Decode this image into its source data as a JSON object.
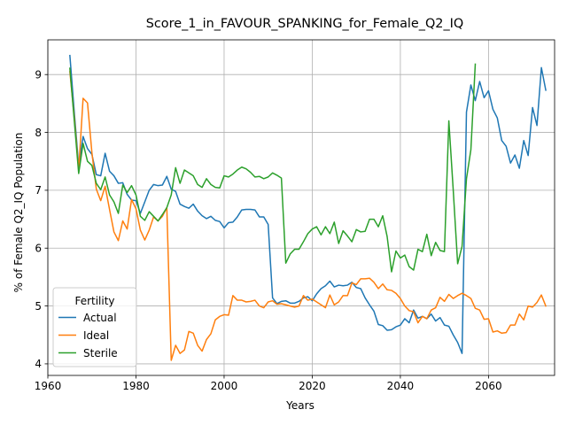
{
  "chart_data": {
    "type": "line",
    "title": "Score_1_in_FAVOUR_SPANKING_for_Female_Q2_IQ",
    "xlabel": "Years",
    "ylabel": "% of Female Q2_IQ Population",
    "xlim": [
      1960,
      2075
    ],
    "ylim": [
      3.8,
      9.6
    ],
    "xticks": [
      1960,
      1980,
      2000,
      2020,
      2040,
      2060
    ],
    "yticks": [
      4,
      5,
      6,
      7,
      8,
      9
    ],
    "grid": true,
    "legend": {
      "title": "Fertility",
      "position": "lower-left"
    },
    "x_start": 1965,
    "series": [
      {
        "name": "Actual",
        "color": "#1f77b4",
        "values": [
          9.33,
          8.35,
          7.42,
          7.93,
          7.72,
          7.62,
          7.27,
          7.25,
          7.64,
          7.33,
          7.25,
          7.12,
          7.13,
          6.93,
          6.83,
          6.82,
          6.6,
          6.8,
          7.0,
          7.1,
          7.08,
          7.09,
          7.24,
          7.02,
          6.98,
          6.76,
          6.72,
          6.69,
          6.76,
          6.64,
          6.56,
          6.51,
          6.55,
          6.48,
          6.46,
          6.35,
          6.44,
          6.45,
          6.54,
          6.66,
          6.67,
          6.67,
          6.66,
          6.54,
          6.54,
          6.41,
          5.14,
          5.04,
          5.08,
          5.09,
          5.05,
          5.05,
          5.08,
          5.14,
          5.16,
          5.09,
          5.21,
          5.3,
          5.35,
          5.43,
          5.33,
          5.36,
          5.35,
          5.36,
          5.41,
          5.32,
          5.3,
          5.14,
          5.02,
          4.91,
          4.68,
          4.66,
          4.58,
          4.59,
          4.64,
          4.67,
          4.78,
          4.71,
          4.93,
          4.79,
          4.82,
          4.78,
          4.86,
          4.74,
          4.8,
          4.67,
          4.65,
          4.5,
          4.37,
          4.18,
          8.35,
          8.82,
          8.55,
          8.88,
          8.6,
          8.72,
          8.4,
          8.25,
          7.86,
          7.76,
          7.47,
          7.61,
          7.38,
          7.86,
          7.6,
          8.43,
          8.12,
          9.12,
          8.73
        ]
      },
      {
        "name": "Ideal",
        "color": "#ff7f0e",
        "values": [
          9.05,
          8.26,
          7.35,
          8.59,
          8.51,
          7.65,
          7.02,
          6.82,
          7.07,
          6.67,
          6.28,
          6.13,
          6.47,
          6.33,
          6.84,
          6.68,
          6.31,
          6.14,
          6.31,
          6.54,
          6.47,
          6.55,
          6.7,
          4.06,
          4.32,
          4.18,
          4.24,
          4.56,
          4.53,
          4.32,
          4.22,
          4.42,
          4.52,
          4.76,
          4.82,
          4.85,
          4.84,
          5.18,
          5.1,
          5.1,
          5.07,
          5.08,
          5.1,
          5.0,
          4.97,
          5.07,
          5.09,
          5.03,
          5.04,
          5.02,
          5.0,
          4.98,
          5.0,
          5.18,
          5.1,
          5.12,
          5.07,
          5.02,
          4.97,
          5.19,
          5.02,
          5.07,
          5.18,
          5.18,
          5.4,
          5.37,
          5.47,
          5.47,
          5.48,
          5.41,
          5.3,
          5.38,
          5.28,
          5.27,
          5.22,
          5.13,
          5.0,
          4.92,
          4.9,
          4.71,
          4.82,
          4.78,
          4.93,
          4.97,
          5.15,
          5.08,
          5.2,
          5.13,
          5.18,
          5.22,
          5.18,
          5.13,
          4.96,
          4.93,
          4.77,
          4.78,
          4.55,
          4.57,
          4.53,
          4.54,
          4.67,
          4.67,
          4.86,
          4.76,
          5.0,
          4.98,
          5.06,
          5.19,
          5.0
        ]
      },
      {
        "name": "Sterile",
        "color": "#2ca02c",
        "values": [
          9.11,
          8.2,
          7.29,
          7.81,
          7.5,
          7.43,
          7.12,
          7.01,
          7.23,
          6.92,
          6.8,
          6.6,
          7.09,
          6.96,
          7.08,
          6.92,
          6.55,
          6.48,
          6.63,
          6.55,
          6.47,
          6.58,
          6.7,
          6.92,
          7.39,
          7.12,
          7.35,
          7.3,
          7.25,
          7.1,
          7.05,
          7.2,
          7.1,
          7.05,
          7.04,
          7.25,
          7.23,
          7.28,
          7.35,
          7.4,
          7.37,
          7.31,
          7.23,
          7.24,
          7.2,
          7.23,
          7.3,
          7.26,
          7.21,
          5.74,
          5.9,
          5.98,
          5.98,
          6.11,
          6.25,
          6.33,
          6.37,
          6.23,
          6.37,
          6.25,
          6.45,
          6.08,
          6.3,
          6.21,
          6.11,
          6.32,
          6.28,
          6.29,
          6.5,
          6.5,
          6.37,
          6.56,
          6.2,
          5.59,
          5.95,
          5.83,
          5.88,
          5.68,
          5.62,
          5.98,
          5.94,
          6.24,
          5.87,
          6.1,
          5.96,
          5.94,
          8.2,
          7.0,
          5.73,
          6.03,
          7.2,
          7.7,
          9.18
        ]
      }
    ]
  }
}
